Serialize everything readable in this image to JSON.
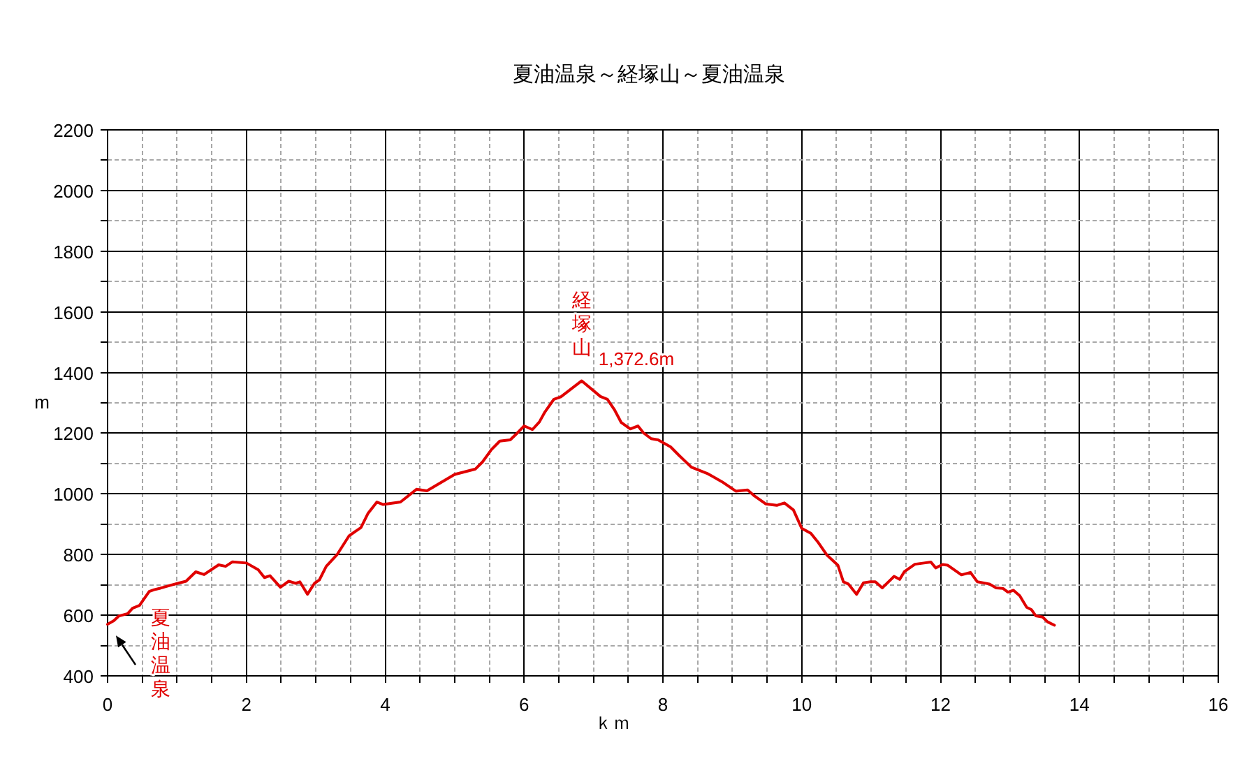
{
  "chart_data": {
    "type": "line",
    "title": "夏油温泉～経塚山～夏油温泉",
    "xlabel": "ｋｍ",
    "ylabel": "m",
    "color": "#e00000",
    "line_style": "solid",
    "grid": true,
    "x": [
      0,
      0.09,
      0.16,
      0.29,
      0.36,
      0.46,
      0.6,
      0.67,
      0.76,
      0.93,
      1.13,
      1.27,
      1.39,
      1.6,
      1.7,
      1.8,
      2.0,
      2.17,
      2.26,
      2.34,
      2.49,
      2.61,
      2.71,
      2.77,
      2.88,
      2.98,
      3.05,
      3.15,
      3.31,
      3.48,
      3.65,
      3.75,
      3.88,
      3.97,
      4.22,
      4.45,
      4.6,
      4.8,
      5.0,
      5.3,
      5.4,
      5.53,
      5.65,
      5.8,
      5.9,
      6.0,
      6.12,
      6.22,
      6.3,
      6.43,
      6.53,
      6.83,
      7.1,
      7.2,
      7.3,
      7.4,
      7.53,
      7.64,
      7.72,
      7.83,
      7.93,
      8.11,
      8.24,
      8.41,
      8.65,
      8.85,
      9.05,
      9.22,
      9.32,
      9.48,
      9.64,
      9.75,
      9.88,
      10.0,
      10.13,
      10.24,
      10.36,
      10.52,
      10.6,
      10.67,
      10.79,
      10.89,
      10.99,
      11.06,
      11.16,
      11.33,
      11.41,
      11.48,
      11.63,
      11.76,
      11.86,
      11.93,
      12.03,
      12.1,
      12.3,
      12.43,
      12.53,
      12.7,
      12.8,
      12.9,
      12.97,
      13.05,
      13.14,
      13.24,
      13.31,
      13.37,
      13.47,
      13.54,
      13.64
    ],
    "values": [
      570,
      582,
      597,
      605,
      623,
      632,
      678,
      684,
      689,
      700,
      712,
      743,
      734,
      766,
      761,
      776,
      772,
      750,
      724,
      730,
      692,
      712,
      705,
      710,
      669,
      705,
      716,
      761,
      801,
      862,
      889,
      935,
      973,
      965,
      973,
      1015,
      1010,
      1037,
      1064,
      1082,
      1105,
      1146,
      1174,
      1178,
      1200,
      1224,
      1212,
      1237,
      1270,
      1312,
      1320,
      1372.6,
      1321,
      1312,
      1278,
      1235,
      1214,
      1224,
      1201,
      1182,
      1178,
      1155,
      1125,
      1088,
      1066,
      1040,
      1009,
      1013,
      993,
      967,
      962,
      970,
      947,
      886,
      870,
      839,
      799,
      765,
      710,
      703,
      669,
      707,
      710,
      710,
      690,
      728,
      718,
      744,
      768,
      772,
      775,
      756,
      767,
      765,
      733,
      741,
      710,
      703,
      690,
      688,
      676,
      682,
      664,
      626,
      618,
      598,
      594,
      578,
      567
    ],
    "xlim": [
      0,
      16
    ],
    "ylim": [
      400,
      2200
    ],
    "xticks": [
      0,
      {
        "value": 0.5,
        "label": null
      },
      {
        "value": 1,
        "label": null
      },
      {
        "value": 1.5,
        "label": null
      },
      2,
      {
        "value": 2.5,
        "label": null
      },
      {
        "value": 3,
        "label": null
      },
      {
        "value": 3.5,
        "label": null
      },
      4,
      {
        "value": 4.5,
        "label": null
      },
      {
        "value": 5,
        "label": null
      },
      {
        "value": 5.5,
        "label": null
      },
      6,
      {
        "value": 6.5,
        "label": null
      },
      {
        "value": 7,
        "label": null
      },
      {
        "value": 7.5,
        "label": null
      },
      8,
      {
        "value": 8.5,
        "label": null
      },
      {
        "value": 9,
        "label": null
      },
      {
        "value": 9.5,
        "label": null
      },
      10,
      {
        "value": 10.5,
        "label": null
      },
      {
        "value": 11,
        "label": null
      },
      {
        "value": 11.5,
        "label": null
      },
      12,
      {
        "value": 12.5,
        "label": null
      },
      {
        "value": 13,
        "label": null
      },
      {
        "value": 13.5,
        "label": null
      },
      14,
      {
        "value": 14.5,
        "label": null
      },
      {
        "value": 15,
        "label": null
      },
      {
        "value": 15.5,
        "label": null
      },
      16
    ],
    "yticks": [
      400,
      {
        "value": 500,
        "label": null
      },
      600,
      {
        "value": 700,
        "label": null
      },
      800,
      {
        "value": 900,
        "label": null
      },
      1000,
      {
        "value": 1100,
        "label": null
      },
      1200,
      {
        "value": 1300,
        "label": null
      },
      1400,
      {
        "value": 1500,
        "label": null
      },
      1600,
      {
        "value": 1700,
        "label": null
      },
      1800,
      {
        "value": 1900,
        "label": null
      },
      2000,
      {
        "value": 2100,
        "label": null
      },
      2200
    ],
    "annotations": [
      "夏油温泉",
      {
        "text": "1,372.6m",
        "x": 6.83,
        "y": 1372.6
      },
      {
        "text": "経塚山",
        "x": 6.83,
        "y": 1372.6
      }
    ]
  }
}
